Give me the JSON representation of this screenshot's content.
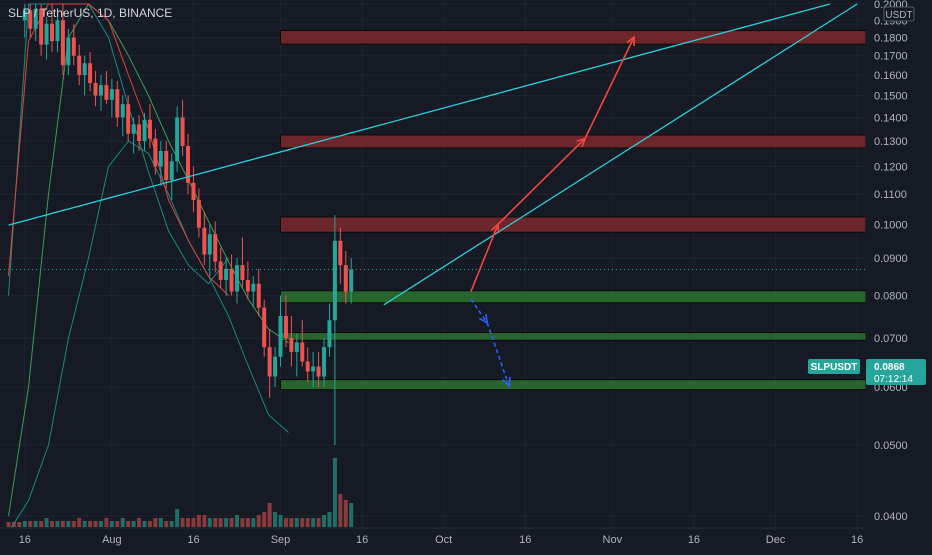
{
  "symbol": {
    "title": "SLP / TetherUS, 1D, BINANCE",
    "ticker": "SLPUSDT",
    "last_price": "0.0868",
    "countdown": "07:12:14",
    "currency": "USDT"
  },
  "colors": {
    "background": "#161a25",
    "up": "#26a69a",
    "down": "#ef5350",
    "trendline": "#2bd0d8",
    "zone_resistance": "#8a2a2e",
    "zone_support": "#2e7d32",
    "arrow_up": "#f2473f",
    "arrow_down": "#2962ff",
    "ma_slow": "#e0443c",
    "ma_fast": "#3d9c5a",
    "band": "#1b8a7c"
  },
  "chart_data": {
    "type": "candlestick",
    "title": "SLP / TetherUS, 1D, BINANCE",
    "y_axis": {
      "scale": "log",
      "range": [
        0.038,
        0.2
      ],
      "ticks": [
        "0.2000",
        "0.1900",
        "0.1800",
        "0.1700",
        "0.1600",
        "0.1500",
        "0.1400",
        "0.1300",
        "0.1200",
        "0.1100",
        "0.1000",
        "0.0900",
        "0.0800",
        "0.0700",
        "0.0600",
        "0.0500",
        "0.0400"
      ],
      "position": "right"
    },
    "x_axis": {
      "labels": [
        "16",
        "Aug",
        "16",
        "Sep",
        "16",
        "Oct",
        "16",
        "Nov",
        "16",
        "Dec",
        "16"
      ],
      "start_date": "2021-07-13",
      "end_date": "2021-12-16"
    },
    "candles": [
      [
        0.19,
        0.2,
        0.18,
        0.196
      ],
      [
        0.196,
        0.2,
        0.18,
        0.185
      ],
      [
        0.185,
        0.2,
        0.178,
        0.197
      ],
      [
        0.197,
        0.2,
        0.17,
        0.176
      ],
      [
        0.176,
        0.192,
        0.168,
        0.188
      ],
      [
        0.188,
        0.2,
        0.172,
        0.178
      ],
      [
        0.178,
        0.196,
        0.172,
        0.19
      ],
      [
        0.19,
        0.2,
        0.16,
        0.165
      ],
      [
        0.165,
        0.185,
        0.16,
        0.18
      ],
      [
        0.18,
        0.188,
        0.165,
        0.17
      ],
      [
        0.17,
        0.176,
        0.155,
        0.16
      ],
      [
        0.16,
        0.17,
        0.15,
        0.166
      ],
      [
        0.166,
        0.172,
        0.152,
        0.156
      ],
      [
        0.156,
        0.162,
        0.145,
        0.15
      ],
      [
        0.15,
        0.16,
        0.143,
        0.155
      ],
      [
        0.155,
        0.162,
        0.146,
        0.148
      ],
      [
        0.148,
        0.158,
        0.14,
        0.153
      ],
      [
        0.153,
        0.157,
        0.136,
        0.14
      ],
      [
        0.14,
        0.15,
        0.132,
        0.146
      ],
      [
        0.146,
        0.15,
        0.13,
        0.133
      ],
      [
        0.133,
        0.14,
        0.125,
        0.137
      ],
      [
        0.137,
        0.141,
        0.126,
        0.13
      ],
      [
        0.13,
        0.142,
        0.126,
        0.139
      ],
      [
        0.139,
        0.146,
        0.127,
        0.131
      ],
      [
        0.131,
        0.135,
        0.117,
        0.12
      ],
      [
        0.12,
        0.13,
        0.113,
        0.126
      ],
      [
        0.126,
        0.13,
        0.112,
        0.115
      ],
      [
        0.115,
        0.125,
        0.108,
        0.122
      ],
      [
        0.122,
        0.145,
        0.118,
        0.14
      ],
      [
        0.14,
        0.148,
        0.124,
        0.128
      ],
      [
        0.128,
        0.133,
        0.11,
        0.114
      ],
      [
        0.114,
        0.12,
        0.104,
        0.108
      ],
      [
        0.108,
        0.112,
        0.096,
        0.099
      ],
      [
        0.099,
        0.104,
        0.088,
        0.091
      ],
      [
        0.091,
        0.1,
        0.085,
        0.097
      ],
      [
        0.097,
        0.101,
        0.086,
        0.089
      ],
      [
        0.089,
        0.093,
        0.082,
        0.084
      ],
      [
        0.084,
        0.09,
        0.08,
        0.087
      ],
      [
        0.087,
        0.091,
        0.08,
        0.081
      ],
      [
        0.081,
        0.09,
        0.078,
        0.088
      ],
      [
        0.088,
        0.096,
        0.082,
        0.084
      ],
      [
        0.084,
        0.089,
        0.079,
        0.081
      ],
      [
        0.081,
        0.085,
        0.077,
        0.083
      ],
      [
        0.083,
        0.087,
        0.075,
        0.077
      ],
      [
        0.077,
        0.079,
        0.066,
        0.068
      ],
      [
        0.068,
        0.072,
        0.058,
        0.062
      ],
      [
        0.062,
        0.068,
        0.06,
        0.066
      ],
      [
        0.066,
        0.08,
        0.064,
        0.075
      ],
      [
        0.075,
        0.08,
        0.068,
        0.07
      ],
      [
        0.07,
        0.075,
        0.064,
        0.067
      ],
      [
        0.067,
        0.071,
        0.062,
        0.069
      ],
      [
        0.069,
        0.074,
        0.064,
        0.065
      ],
      [
        0.065,
        0.068,
        0.061,
        0.063
      ],
      [
        0.063,
        0.067,
        0.06,
        0.064
      ],
      [
        0.064,
        0.067,
        0.06,
        0.062
      ],
      [
        0.062,
        0.07,
        0.06,
        0.068
      ],
      [
        0.068,
        0.078,
        0.066,
        0.074
      ],
      [
        0.074,
        0.103,
        0.05,
        0.095
      ],
      [
        0.095,
        0.099,
        0.083,
        0.088
      ],
      [
        0.088,
        0.092,
        0.078,
        0.081
      ],
      [
        0.081,
        0.09,
        0.078,
        0.0868
      ]
    ],
    "volume_relative": [
      2,
      2,
      2,
      2,
      3,
      2,
      2,
      2,
      2,
      2,
      3,
      2,
      2,
      2,
      2,
      3,
      2,
      2,
      3,
      2,
      2,
      3,
      2,
      2,
      3,
      3,
      2,
      2,
      6,
      3,
      3,
      3,
      4,
      4,
      3,
      3,
      3,
      3,
      3,
      4,
      3,
      3,
      3,
      4,
      5,
      8,
      5,
      4,
      3,
      3,
      3,
      3,
      3,
      3,
      3,
      4,
      5,
      23,
      11,
      9,
      8
    ],
    "overlays": {
      "moving_average_slow": [
        [
          0,
          0.085
        ],
        [
          20,
          0.178
        ],
        [
          40,
          0.2
        ],
        [
          60,
          0.2
        ],
        [
          80,
          0.2
        ],
        [
          100,
          0.19
        ],
        [
          120,
          0.16
        ],
        [
          140,
          0.135
        ],
        [
          160,
          0.108
        ],
        [
          180,
          0.095
        ],
        [
          200,
          0.085
        ],
        [
          220,
          0.08
        ]
      ],
      "moving_average_fast": [
        [
          0,
          0.04
        ],
        [
          20,
          0.06
        ],
        [
          40,
          0.11
        ],
        [
          60,
          0.18
        ],
        [
          80,
          0.2
        ],
        [
          100,
          0.19
        ],
        [
          120,
          0.17
        ],
        [
          140,
          0.15
        ],
        [
          160,
          0.13
        ],
        [
          180,
          0.115
        ],
        [
          200,
          0.101
        ],
        [
          220,
          0.089
        ],
        [
          240,
          0.079
        ],
        [
          260,
          0.072
        ],
        [
          280,
          0.069
        ]
      ],
      "band_upper": [
        [
          0,
          0.08
        ],
        [
          20,
          0.2
        ],
        [
          40,
          0.2
        ],
        [
          60,
          0.2
        ],
        [
          80,
          0.2
        ],
        [
          100,
          0.18
        ],
        [
          120,
          0.145
        ],
        [
          140,
          0.118
        ],
        [
          160,
          0.098
        ],
        [
          180,
          0.088
        ],
        [
          200,
          0.083
        ],
        [
          220,
          0.09
        ]
      ],
      "band_lower": [
        [
          0,
          0.038
        ],
        [
          20,
          0.042
        ],
        [
          40,
          0.05
        ],
        [
          60,
          0.07
        ],
        [
          80,
          0.09
        ],
        [
          100,
          0.12
        ],
        [
          120,
          0.13
        ],
        [
          140,
          0.125
        ],
        [
          160,
          0.11
        ],
        [
          180,
          0.095
        ],
        [
          200,
          0.085
        ],
        [
          220,
          0.075
        ],
        [
          240,
          0.064
        ],
        [
          260,
          0.055
        ],
        [
          280,
          0.052
        ]
      ]
    },
    "zones": [
      {
        "kind": "resistance",
        "low": 0.1763,
        "high": 0.184
      },
      {
        "kind": "resistance",
        "low": 0.1272,
        "high": 0.1325
      },
      {
        "kind": "resistance",
        "low": 0.0976,
        "high": 0.1024
      },
      {
        "kind": "support",
        "low": 0.0782,
        "high": 0.0812
      },
      {
        "kind": "support",
        "low": 0.0695,
        "high": 0.0712
      },
      {
        "kind": "support",
        "low": 0.0595,
        "high": 0.0614
      }
    ],
    "trendlines": [
      {
        "from": [
          "2021-07-13",
          0.0998
        ],
        "to": [
          "2021-12-11",
          0.2
        ]
      },
      {
        "from": [
          "2021-09-20",
          0.0777
        ],
        "to": [
          "2021-12-16",
          0.2
        ]
      }
    ],
    "projection_arrows_up": [
      {
        "from": [
          "2021-10-06",
          0.081
        ],
        "to": [
          "2021-10-11",
          0.1001
        ]
      },
      {
        "from": [
          "2021-10-11",
          0.1001
        ],
        "to": [
          "2021-10-27",
          0.1311
        ]
      },
      {
        "from": [
          "2021-10-27",
          0.1311
        ],
        "to": [
          "2021-11-05",
          0.1803
        ]
      }
    ],
    "projection_arrows_down": [
      {
        "from": [
          "2021-10-06",
          0.0791
        ],
        "to": [
          "2021-10-09",
          0.0734
        ]
      },
      {
        "from": [
          "2021-10-09",
          0.0734
        ],
        "to": [
          "2021-10-13",
          0.0602
        ]
      }
    ],
    "last_price_line": 0.0868
  }
}
